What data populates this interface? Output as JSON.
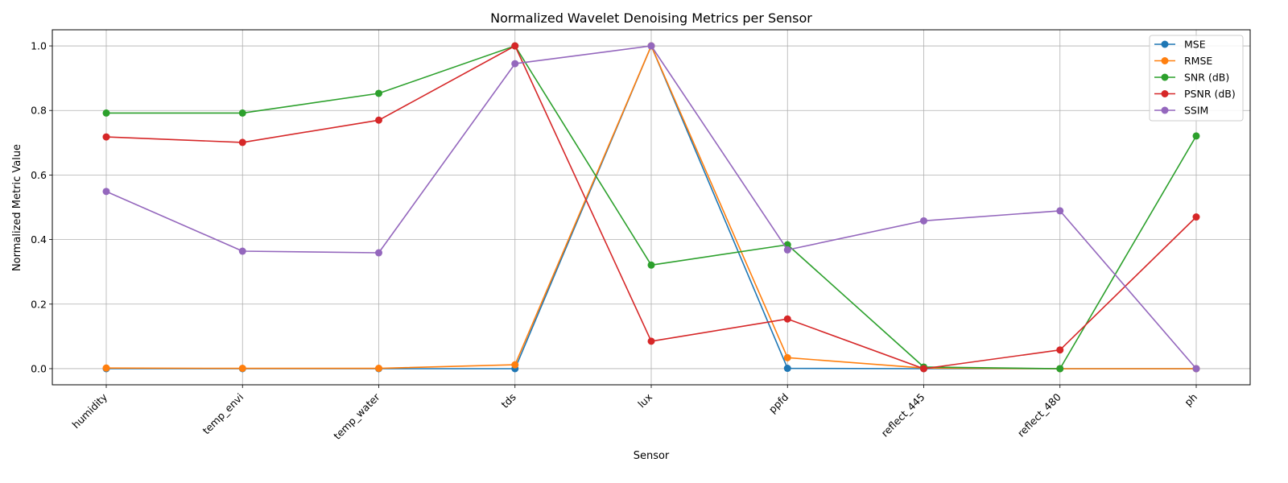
{
  "chart_data": {
    "type": "line",
    "title": "Normalized Wavelet Denoising Metrics per Sensor",
    "xlabel": "Sensor",
    "ylabel": "Normalized Metric Value",
    "categories": [
      "humidity",
      "temp_envi",
      "temp_water",
      "tds",
      "lux",
      "ppfd",
      "reflect_445",
      "reflect_480",
      "ph"
    ],
    "yticks": [
      "0.0",
      "0.2",
      "0.4",
      "0.6",
      "0.8",
      "1.0"
    ],
    "ylim": [
      -0.05,
      1.05
    ],
    "grid": true,
    "legend_position": "top-right",
    "series": [
      {
        "name": "MSE",
        "color": "#1f77b4",
        "values": [
          0.0,
          0.0,
          0.0,
          0.0,
          1.0,
          0.001,
          0.0,
          0.0,
          0.0
        ]
      },
      {
        "name": "RMSE",
        "color": "#ff7f0e",
        "values": [
          0.002,
          0.001,
          0.001,
          0.012,
          1.0,
          0.034,
          0.002,
          0.0,
          0.0
        ]
      },
      {
        "name": "SNR (dB)",
        "color": "#2ca02c",
        "values": [
          0.792,
          0.792,
          0.853,
          1.0,
          0.321,
          0.384,
          0.005,
          0.0,
          0.721
        ]
      },
      {
        "name": "PSNR (dB)",
        "color": "#d62728",
        "values": [
          0.718,
          0.701,
          0.77,
          1.0,
          0.085,
          0.154,
          0.0,
          0.058,
          0.47
        ]
      },
      {
        "name": "SSIM",
        "color": "#9467bd",
        "values": [
          0.549,
          0.364,
          0.359,
          0.945,
          1.0,
          0.368,
          0.458,
          0.489,
          0.0
        ]
      }
    ]
  }
}
